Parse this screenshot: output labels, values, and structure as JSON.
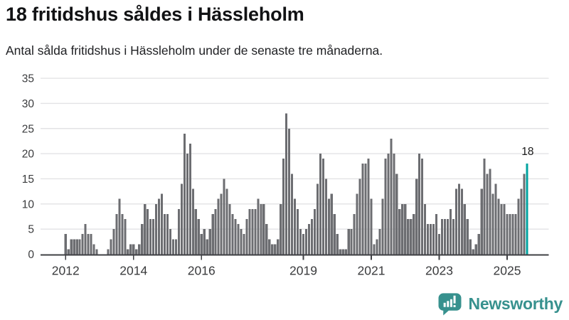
{
  "header": {
    "title": "18 fritidshus såldes i Hässleholm",
    "subtitle": "Antal sålda fritidshus i Hässleholm under de senaste tre månaderna."
  },
  "chart_data": {
    "type": "bar",
    "title": "18 fritidshus såldes i Hässleholm",
    "subtitle": "Antal sålda fritidshus i Hässleholm under de senaste tre månaderna.",
    "x_unit": "month",
    "start_year": 2012,
    "values": [
      4,
      1,
      3,
      3,
      3,
      3,
      4,
      6,
      4,
      4,
      2,
      1,
      0,
      0,
      0,
      1,
      3,
      5,
      8,
      11,
      8,
      7,
      1,
      2,
      2,
      1,
      2,
      6,
      10,
      9,
      7,
      7,
      10,
      11,
      12,
      8,
      8,
      5,
      3,
      3,
      9,
      14,
      24,
      20,
      22,
      13,
      9,
      7,
      4,
      5,
      3,
      5,
      8,
      9,
      11,
      12,
      15,
      13,
      10,
      8,
      7,
      6,
      5,
      4,
      7,
      9,
      9,
      9,
      11,
      10,
      10,
      6,
      3,
      2,
      2,
      3,
      10,
      19,
      28,
      25,
      16,
      11,
      9,
      5,
      4,
      5,
      6,
      7,
      9,
      14,
      20,
      19,
      15,
      11,
      12,
      8,
      4,
      1,
      1,
      1,
      5,
      5,
      8,
      12,
      15,
      18,
      18,
      19,
      11,
      2,
      3,
      5,
      11,
      19,
      20,
      23,
      20,
      16,
      9,
      10,
      10,
      7,
      7,
      8,
      15,
      20,
      19,
      10,
      6,
      6,
      6,
      8,
      4,
      7,
      7,
      7,
      9,
      7,
      13,
      14,
      13,
      10,
      7,
      3,
      1,
      2,
      4,
      13,
      19,
      16,
      17,
      12,
      14,
      11,
      10,
      10,
      8,
      8,
      8,
      8,
      11,
      13,
      16,
      18
    ],
    "x_ticks": [
      {
        "label": "2012",
        "index": 0
      },
      {
        "label": "2014",
        "index": 24
      },
      {
        "label": "2016",
        "index": 48
      },
      {
        "label": "2019",
        "index": 84
      },
      {
        "label": "2021",
        "index": 108
      },
      {
        "label": "2023",
        "index": 132
      },
      {
        "label": "2025",
        "index": 156
      }
    ],
    "y_ticks": [
      0,
      5,
      10,
      15,
      20,
      25,
      30,
      35
    ],
    "ylim": [
      0,
      35
    ],
    "grid": true,
    "legend": "none",
    "bar_color": "#6c6d71",
    "highlight": {
      "index": 163,
      "value": 18,
      "label": "18",
      "color": "#01a3a0"
    },
    "grid_color": "#e3e3e5",
    "axis_color": "#3f4044",
    "tick_label_color": "#3a3b3d",
    "annotation_color": "#1a1a1a"
  },
  "branding": {
    "logo_text": "Newsworthy",
    "logo_color": "#37918e",
    "logo_icon": "bar-chart-speech-bubble"
  }
}
